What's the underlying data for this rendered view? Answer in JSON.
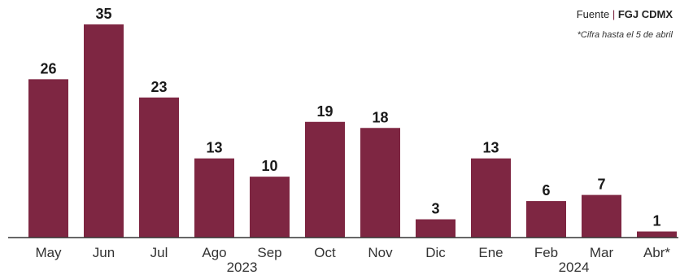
{
  "chart_data": {
    "type": "bar",
    "categories": [
      "May",
      "Jun",
      "Jul",
      "Ago",
      "Sep",
      "Oct",
      "Nov",
      "Dic",
      "Ene",
      "Feb",
      "Mar",
      "Abr*"
    ],
    "values": [
      26,
      35,
      23,
      13,
      10,
      19,
      18,
      3,
      13,
      6,
      7,
      1
    ],
    "year_labels": [
      {
        "label": "2023",
        "categories": [
          "May",
          "Jun",
          "Jul",
          "Ago",
          "Sep",
          "Oct",
          "Nov",
          "Dic"
        ]
      },
      {
        "label": "2024",
        "categories": [
          "Ene",
          "Feb",
          "Mar",
          "Abr*"
        ]
      }
    ],
    "source_prefix": "Fuente",
    "source_name": "FGJ CDMX",
    "note": "*Cifra hasta el 5 de abril",
    "ylim": [
      0,
      35
    ],
    "grid": false,
    "bar_color": "#7e2642"
  }
}
